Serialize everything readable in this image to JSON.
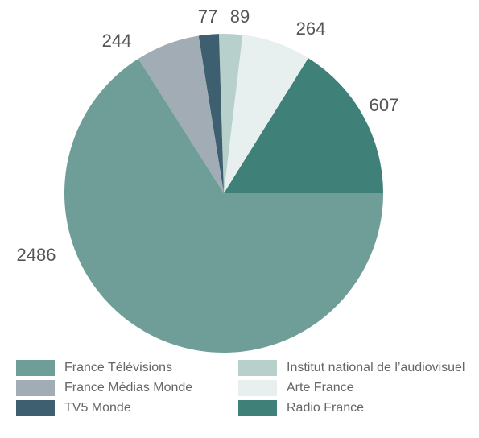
{
  "chart_data": {
    "type": "pie",
    "categories": [
      "France Télévisions",
      "France Médias Monde",
      "TV5 Monde",
      "Institut national de l’audiovisuel",
      "Arte France",
      "Radio France"
    ],
    "values": [
      2486,
      244,
      77,
      89,
      264,
      607
    ],
    "colors": [
      "#6f9e98",
      "#a2acb4",
      "#3d5f70",
      "#b7d0cc",
      "#e7f0ef",
      "#3f8079"
    ]
  }
}
